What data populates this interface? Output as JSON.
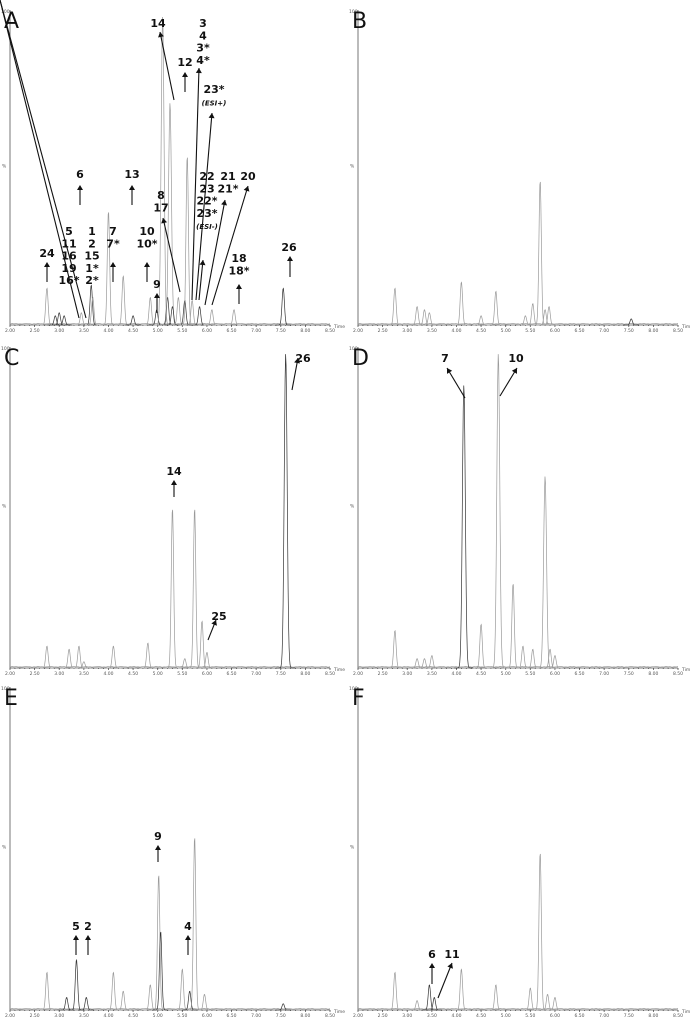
{
  "colors": {
    "trace_light": "#9a9a9a",
    "trace_dark": "#333333",
    "text": "#111111"
  },
  "chart_data": [
    {
      "panel": "A",
      "type": "line",
      "xlim": [
        2.0,
        8.5
      ],
      "x_axis_label": "Time",
      "x_ticks": [
        "2.00",
        "2.50",
        "3.00",
        "3.50",
        "4.00",
        "4.50",
        "5.00",
        "5.50",
        "6.00",
        "6.50",
        "7.00",
        "7.50",
        "8.00",
        "8.50"
      ],
      "y_ticks": [
        "100",
        "%"
      ],
      "peaks": [
        {
          "rt": 2.75,
          "h": 12,
          "dark": false
        },
        {
          "rt": 2.92,
          "h": 3,
          "dark": true
        },
        {
          "rt": 3.0,
          "h": 4,
          "dark": true
        },
        {
          "rt": 3.1,
          "h": 3,
          "dark": true
        },
        {
          "rt": 3.45,
          "h": 4,
          "dark": false
        },
        {
          "rt": 3.65,
          "h": 13,
          "dark": true
        },
        {
          "rt": 3.68,
          "h": 9,
          "dark": false
        },
        {
          "rt": 4.0,
          "h": 37,
          "dark": false
        },
        {
          "rt": 4.3,
          "h": 16,
          "dark": false
        },
        {
          "rt": 4.5,
          "h": 3,
          "dark": true
        },
        {
          "rt": 4.85,
          "h": 9,
          "dark": false
        },
        {
          "rt": 4.98,
          "h": 5,
          "dark": true
        },
        {
          "rt": 5.1,
          "h": 100,
          "dark": false
        },
        {
          "rt": 5.2,
          "h": 9,
          "dark": true
        },
        {
          "rt": 5.25,
          "h": 72,
          "dark": false
        },
        {
          "rt": 5.3,
          "h": 6,
          "dark": true
        },
        {
          "rt": 5.42,
          "h": 9,
          "dark": false
        },
        {
          "rt": 5.55,
          "h": 8,
          "dark": true
        },
        {
          "rt": 5.6,
          "h": 55,
          "dark": false
        },
        {
          "rt": 5.7,
          "h": 8,
          "dark": false
        },
        {
          "rt": 5.85,
          "h": 6,
          "dark": true
        },
        {
          "rt": 6.1,
          "h": 5,
          "dark": false
        },
        {
          "rt": 6.55,
          "h": 5,
          "dark": false
        },
        {
          "rt": 7.55,
          "h": 12,
          "dark": true
        }
      ],
      "annotations": [
        {
          "lines": [
            "24"
          ],
          "rt": 2.75
        },
        {
          "lines": [
            "5",
            "11",
            "16",
            "19",
            "16*"
          ],
          "rt": 3.0
        },
        {
          "lines": [
            "1",
            "2",
            "15",
            "1*",
            "2*"
          ],
          "rt": 3.45
        },
        {
          "lines": [
            "6"
          ],
          "rt": 3.45
        },
        {
          "lines": [
            "7",
            "7*"
          ],
          "rt": 3.65
        },
        {
          "lines": [
            "13"
          ],
          "rt": 4.0
        },
        {
          "lines": [
            "10",
            "10*"
          ],
          "rt": 4.3
        },
        {
          "lines": [
            "9"
          ],
          "rt": 4.5
        },
        {
          "lines": [
            "8",
            "17"
          ],
          "rt": 4.85
        },
        {
          "lines": [
            "14"
          ],
          "rt": 5.1
        },
        {
          "lines": [
            "12"
          ],
          "rt": 5.2
        },
        {
          "lines": [
            "3",
            "4",
            "3*",
            "4*"
          ],
          "rt": 5.3
        },
        {
          "lines": [
            "23*",
            "(ESI+)"
          ],
          "rt": 5.4
        },
        {
          "lines": [
            "22",
            "23",
            "22*",
            "23*",
            "(ESI-)"
          ],
          "rt": 5.55
        },
        {
          "lines": [
            "21",
            "21*"
          ],
          "rt": 5.7
        },
        {
          "lines": [
            "20"
          ],
          "rt": 5.85
        },
        {
          "lines": [
            "18",
            "18*"
          ],
          "rt": 6.55
        },
        {
          "lines": [
            "26"
          ],
          "rt": 7.55
        }
      ]
    },
    {
      "panel": "B",
      "type": "line",
      "xlim": [
        2.0,
        8.5
      ],
      "x_axis_label": "Time",
      "x_ticks": [
        "2.00",
        "2.50",
        "3.00",
        "3.50",
        "4.00",
        "4.50",
        "5.00",
        "5.50",
        "6.00",
        "6.50",
        "7.00",
        "7.50",
        "8.00",
        "8.50"
      ],
      "y_ticks": [
        "100",
        "%"
      ],
      "peaks": [
        {
          "rt": 2.75,
          "h": 12,
          "dark": false
        },
        {
          "rt": 3.2,
          "h": 6,
          "dark": false
        },
        {
          "rt": 3.35,
          "h": 5,
          "dark": false
        },
        {
          "rt": 3.45,
          "h": 4,
          "dark": false
        },
        {
          "rt": 4.1,
          "h": 14,
          "dark": false
        },
        {
          "rt": 4.5,
          "h": 3,
          "dark": false
        },
        {
          "rt": 4.8,
          "h": 11,
          "dark": false
        },
        {
          "rt": 5.4,
          "h": 3,
          "dark": false
        },
        {
          "rt": 5.55,
          "h": 7,
          "dark": false
        },
        {
          "rt": 5.7,
          "h": 47,
          "dark": false
        },
        {
          "rt": 5.8,
          "h": 5,
          "dark": false
        },
        {
          "rt": 5.88,
          "h": 6,
          "dark": false
        },
        {
          "rt": 7.55,
          "h": 2,
          "dark": true
        }
      ],
      "annotations": []
    },
    {
      "panel": "C",
      "type": "line",
      "xlim": [
        2.0,
        8.5
      ],
      "x_axis_label": "Time",
      "x_ticks": [
        "2.00",
        "2.50",
        "3.00",
        "3.50",
        "4.00",
        "4.50",
        "5.00",
        "5.50",
        "6.00",
        "6.50",
        "7.00",
        "7.50",
        "8.00",
        "8.50"
      ],
      "y_ticks": [
        "100",
        "%"
      ],
      "peaks": [
        {
          "rt": 2.75,
          "h": 7,
          "dark": false
        },
        {
          "rt": 3.2,
          "h": 6,
          "dark": false
        },
        {
          "rt": 3.4,
          "h": 7,
          "dark": false
        },
        {
          "rt": 3.5,
          "h": 2,
          "dark": false
        },
        {
          "rt": 4.1,
          "h": 7,
          "dark": false
        },
        {
          "rt": 4.8,
          "h": 8,
          "dark": false
        },
        {
          "rt": 5.3,
          "h": 51,
          "dark": false
        },
        {
          "rt": 5.55,
          "h": 3,
          "dark": false
        },
        {
          "rt": 5.75,
          "h": 51,
          "dark": false
        },
        {
          "rt": 5.9,
          "h": 15,
          "dark": false
        },
        {
          "rt": 6.0,
          "h": 5,
          "dark": false
        },
        {
          "rt": 7.6,
          "h": 100,
          "dark": true
        }
      ],
      "annotations": [
        {
          "lines": [
            "14"
          ],
          "rt": 5.3
        },
        {
          "lines": [
            "25"
          ],
          "rt": 6.0
        },
        {
          "lines": [
            "26"
          ],
          "rt": 7.6
        }
      ]
    },
    {
      "panel": "D",
      "type": "line",
      "xlim": [
        2.0,
        8.5
      ],
      "x_axis_label": "Time",
      "x_ticks": [
        "2.00",
        "2.50",
        "3.00",
        "3.50",
        "4.00",
        "4.50",
        "5.00",
        "5.50",
        "6.00",
        "6.50",
        "7.00",
        "7.50",
        "8.00",
        "8.50"
      ],
      "y_ticks": [
        "100",
        "%"
      ],
      "peaks": [
        {
          "rt": 2.75,
          "h": 12,
          "dark": false
        },
        {
          "rt": 3.2,
          "h": 3,
          "dark": false
        },
        {
          "rt": 3.35,
          "h": 3,
          "dark": false
        },
        {
          "rt": 3.5,
          "h": 4,
          "dark": false
        },
        {
          "rt": 4.15,
          "h": 90,
          "dark": true
        },
        {
          "rt": 4.5,
          "h": 14,
          "dark": false
        },
        {
          "rt": 4.85,
          "h": 100,
          "dark": false
        },
        {
          "rt": 5.15,
          "h": 27,
          "dark": false
        },
        {
          "rt": 5.35,
          "h": 7,
          "dark": false
        },
        {
          "rt": 5.55,
          "h": 6,
          "dark": false
        },
        {
          "rt": 5.8,
          "h": 61,
          "dark": false
        },
        {
          "rt": 5.9,
          "h": 6,
          "dark": false
        },
        {
          "rt": 6.0,
          "h": 4,
          "dark": false
        }
      ],
      "annotations": [
        {
          "lines": [
            "7"
          ],
          "rt": 4.15
        },
        {
          "lines": [
            "10"
          ],
          "rt": 4.85
        }
      ]
    },
    {
      "panel": "E",
      "type": "line",
      "xlim": [
        2.0,
        8.5
      ],
      "x_axis_label": "Time",
      "x_ticks": [
        "2.00",
        "2.50",
        "3.00",
        "3.50",
        "4.00",
        "4.50",
        "5.00",
        "5.50",
        "6.00",
        "6.50",
        "7.00",
        "7.50",
        "8.00",
        "8.50"
      ],
      "y_ticks": [
        "100",
        "%"
      ],
      "peaks": [
        {
          "rt": 2.75,
          "h": 12,
          "dark": false
        },
        {
          "rt": 3.15,
          "h": 4,
          "dark": true
        },
        {
          "rt": 3.35,
          "h": 16,
          "dark": true
        },
        {
          "rt": 3.55,
          "h": 4,
          "dark": true
        },
        {
          "rt": 4.1,
          "h": 12,
          "dark": false
        },
        {
          "rt": 4.3,
          "h": 6,
          "dark": false
        },
        {
          "rt": 4.85,
          "h": 8,
          "dark": false
        },
        {
          "rt": 5.02,
          "h": 43,
          "dark": false
        },
        {
          "rt": 5.06,
          "h": 25,
          "dark": true
        },
        {
          "rt": 5.5,
          "h": 13,
          "dark": false
        },
        {
          "rt": 5.65,
          "h": 6,
          "dark": true
        },
        {
          "rt": 5.75,
          "h": 55,
          "dark": false
        },
        {
          "rt": 5.95,
          "h": 5,
          "dark": false
        },
        {
          "rt": 7.55,
          "h": 2,
          "dark": true
        }
      ],
      "annotations": [
        {
          "lines": [
            "5"
          ],
          "rt": 3.35
        },
        {
          "lines": [
            "2"
          ],
          "rt": 3.55
        },
        {
          "lines": [
            "9"
          ],
          "rt": 5.02
        },
        {
          "lines": [
            "4"
          ],
          "rt": 5.65
        }
      ]
    },
    {
      "panel": "F",
      "type": "line",
      "xlim": [
        2.0,
        8.5
      ],
      "x_axis_label": "Time",
      "x_ticks": [
        "2.00",
        "2.50",
        "3.00",
        "3.50",
        "4.00",
        "4.50",
        "5.00",
        "5.50",
        "6.00",
        "6.50",
        "7.00",
        "7.50",
        "8.00",
        "8.50"
      ],
      "y_ticks": [
        "100",
        "%"
      ],
      "peaks": [
        {
          "rt": 2.75,
          "h": 12,
          "dark": false
        },
        {
          "rt": 3.2,
          "h": 3,
          "dark": false
        },
        {
          "rt": 3.45,
          "h": 8,
          "dark": true
        },
        {
          "rt": 3.55,
          "h": 4,
          "dark": true
        },
        {
          "rt": 4.1,
          "h": 13,
          "dark": false
        },
        {
          "rt": 4.8,
          "h": 8,
          "dark": false
        },
        {
          "rt": 5.5,
          "h": 7,
          "dark": false
        },
        {
          "rt": 5.7,
          "h": 50,
          "dark": false
        },
        {
          "rt": 5.85,
          "h": 5,
          "dark": false
        },
        {
          "rt": 6.0,
          "h": 4,
          "dark": false
        }
      ],
      "annotations": [
        {
          "lines": [
            "6"
          ],
          "rt": 3.45
        },
        {
          "lines": [
            "11"
          ],
          "rt": 3.55
        }
      ]
    }
  ]
}
